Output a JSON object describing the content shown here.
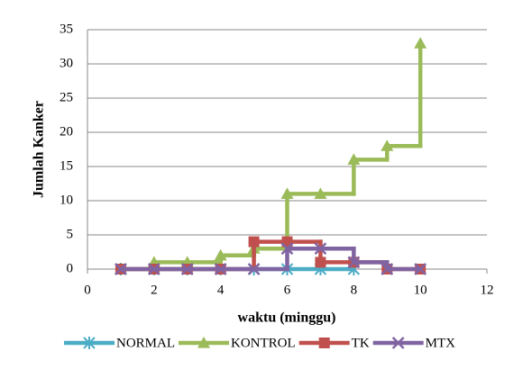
{
  "chart_data": {
    "type": "line",
    "step": "post",
    "x_label": "waktu (minggu)",
    "y_label": "Jumlah Kanker",
    "x": [
      1,
      2,
      3,
      4,
      5,
      6,
      7,
      8,
      9,
      10
    ],
    "series": [
      {
        "name": "NORMAL",
        "color": "#4bacc6",
        "marker": "star",
        "values": [
          0,
          0,
          0,
          0,
          0,
          0,
          0,
          0,
          null,
          null
        ]
      },
      {
        "name": "KONTROL",
        "color": "#9bbb59",
        "marker": "triangle",
        "values": [
          0,
          1,
          1,
          2,
          3,
          11,
          11,
          16,
          18,
          33
        ]
      },
      {
        "name": "TK",
        "color": "#c0504d",
        "marker": "square",
        "values": [
          0,
          0,
          0,
          0,
          4,
          4,
          1,
          1,
          0,
          0
        ]
      },
      {
        "name": "MTX",
        "color": "#8064a2",
        "marker": "x",
        "values": [
          0,
          0,
          0,
          0,
          0,
          3,
          3,
          1,
          0,
          0
        ]
      }
    ],
    "xlim": [
      0,
      12
    ],
    "xticks": [
      0,
      2,
      4,
      6,
      8,
      10,
      12
    ],
    "ylim": [
      0,
      35
    ],
    "yticks": [
      0,
      5,
      10,
      15,
      20,
      25,
      30,
      35
    ],
    "grid": true,
    "legend": "bottom"
  }
}
